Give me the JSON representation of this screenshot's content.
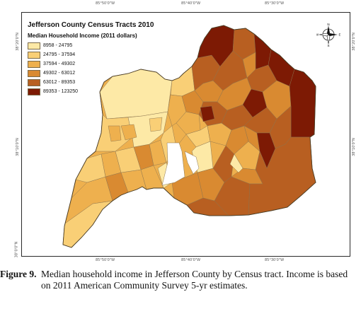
{
  "map": {
    "title": "Jefferson County Census Tracts 2010",
    "subtitle": "Median Household Income (2011 dollars)",
    "legend": [
      {
        "label": "8958 - 24795",
        "color": "#fde9a6"
      },
      {
        "label": "24795 - 37594",
        "color": "#f9cf76"
      },
      {
        "label": "37594 - 49302",
        "color": "#eeb04e"
      },
      {
        "label": "49302 - 63012",
        "color": "#d98a31"
      },
      {
        "label": "63012 - 89353",
        "color": "#b85f21"
      },
      {
        "label": "89353 - 123250",
        "color": "#7d1a04"
      }
    ],
    "compass": {
      "n": "N",
      "s": "S",
      "e": "E",
      "w": "W"
    },
    "ticks": {
      "top": [
        "85°50'0\"W",
        "85°40'0\"W",
        "85°30'0\"W"
      ],
      "bottom": [
        "85°50'0\"W",
        "85°40'0\"W",
        "85°30'0\"W"
      ],
      "left": [
        "38°20'0\"N",
        "38°10'0\"N",
        "38°0'0\"N"
      ],
      "right": [
        "38°20'0\"N",
        "38°10'0\"N"
      ]
    }
  },
  "caption": {
    "label": "Figure 9.",
    "text": "Median household income in Jefferson County by Census tract. Income is based on 2011 American Community Survey 5-yr estimates."
  }
}
